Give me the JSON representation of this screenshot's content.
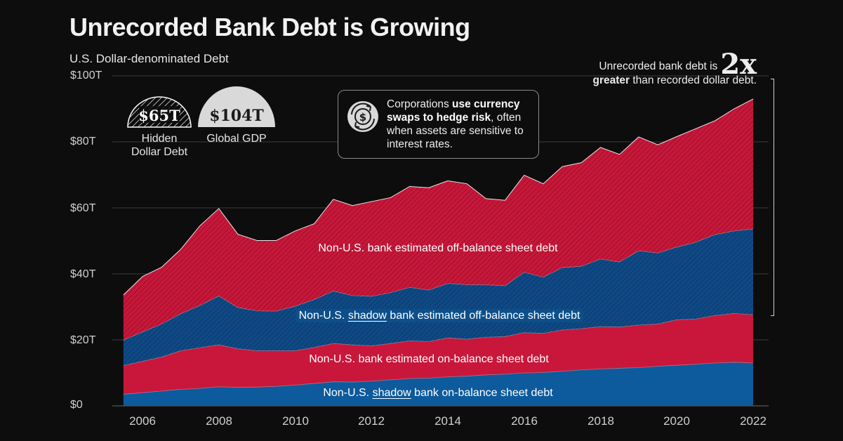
{
  "title": "Unrecorded Bank Debt is Growing",
  "subtitle": "U.S. Dollar-denominated Debt",
  "domes": [
    {
      "value": "$65T",
      "label_line1": "Hidden",
      "label_line2": "Dollar Debt"
    },
    {
      "value": "$104T",
      "label_line1": "Global GDP",
      "label_line2": ""
    }
  ],
  "callout": {
    "text_pre": "Corporations ",
    "text_bold": "use currency swaps to hedge risk",
    "text_post": ", often when assets are sensitive to interest rates."
  },
  "annotation": {
    "line1": "Unrecorded bank debt is",
    "big": "2x",
    "line2_bold": "greater",
    "line2_rest": " than recorded dollar debt."
  },
  "series_labels": {
    "s4": "Non-U.S. bank estimated off-balance sheet debt",
    "s3_pre": "Non-U.S. ",
    "s3_ul": "shadow",
    "s3_post": " bank estimated off-balance sheet debt",
    "s2": "Non-U.S. bank estimated on-balance sheet debt",
    "s1_pre": "Non-U.S. ",
    "s1_ul": "shadow",
    "s1_post": " bank on-balance sheet debt"
  },
  "colors": {
    "background": "#0d0d0d",
    "blue_dark": "#0d5a9c",
    "red_bank": "#c8173a",
    "red_off": "#c8173a",
    "blue_shadow_off": "#0f4a86"
  },
  "chart_data": {
    "type": "area",
    "stacked": true,
    "y_tick_labels": [
      "$0",
      "$20T",
      "$40T",
      "$60T",
      "$80T",
      "$100T"
    ],
    "y_ticks": [
      0,
      20,
      40,
      60,
      80,
      100
    ],
    "x_tick_labels": [
      "2006",
      "2008",
      "2010",
      "2012",
      "2014",
      "2016",
      "2018",
      "2020",
      "2022"
    ],
    "x_ticks": [
      2006,
      2008,
      2010,
      2012,
      2014,
      2016,
      2018,
      2020,
      2022
    ],
    "ylim": [
      0,
      100
    ],
    "xlim": [
      2005.3,
      2022.6
    ],
    "x": [
      2005.5,
      2006,
      2006.5,
      2007,
      2007.5,
      2008,
      2008.5,
      2009,
      2009.5,
      2010,
      2010.5,
      2011,
      2011.5,
      2012,
      2012.5,
      2013,
      2013.5,
      2014,
      2014.5,
      2015,
      2015.5,
      2016,
      2016.5,
      2017,
      2017.5,
      2018,
      2018.5,
      2019,
      2019.5,
      2020,
      2020.5,
      2021,
      2021.5,
      2022
    ],
    "series": [
      {
        "name": "Non-U.S. shadow bank on-balance sheet debt",
        "values": [
          3.5,
          4.0,
          4.5,
          5.0,
          5.3,
          5.8,
          5.6,
          5.7,
          5.9,
          6.3,
          6.8,
          7.3,
          7.2,
          7.5,
          7.9,
          8.3,
          8.4,
          8.8,
          9.0,
          9.4,
          9.6,
          10.0,
          10.1,
          10.5,
          10.9,
          11.2,
          11.4,
          11.6,
          12.0,
          12.3,
          12.6,
          13.0,
          13.2,
          13.0
        ]
      },
      {
        "name": "Non-U.S. bank estimated on-balance sheet debt",
        "values": [
          8.7,
          9.5,
          10.3,
          11.7,
          12.3,
          12.7,
          11.7,
          11.0,
          10.8,
          10.4,
          10.9,
          11.6,
          11.3,
          10.7,
          11.0,
          11.4,
          11.1,
          11.8,
          11.2,
          11.4,
          11.4,
          12.2,
          11.9,
          12.5,
          12.5,
          12.8,
          12.5,
          12.9,
          12.8,
          13.8,
          13.7,
          14.4,
          14.8,
          14.6
        ]
      },
      {
        "name": "Non-U.S. shadow bank estimated off-balance sheet debt",
        "values": [
          7.7,
          8.9,
          10.0,
          11.2,
          12.8,
          14.8,
          12.5,
          12.1,
          12.0,
          13.5,
          14.5,
          15.9,
          14.9,
          15.0,
          15.4,
          16.2,
          15.6,
          16.5,
          16.5,
          15.9,
          15.4,
          18.3,
          17.0,
          18.9,
          18.9,
          20.5,
          19.7,
          22.5,
          21.5,
          22.0,
          23.3,
          24.5,
          25.0,
          26.0
        ]
      },
      {
        "name": "Non-U.S. bank estimated off-balance sheet debt",
        "values": [
          13.7,
          16.8,
          17.2,
          19.5,
          24.1,
          26.5,
          22.2,
          21.3,
          21.4,
          22.8,
          23.0,
          27.8,
          27.3,
          28.7,
          28.8,
          30.6,
          31.0,
          31.1,
          30.6,
          26.1,
          25.9,
          29.4,
          28.3,
          30.6,
          31.4,
          33.8,
          32.6,
          34.5,
          32.8,
          33.5,
          34.4,
          34.5,
          37.0,
          39.4
        ]
      }
    ]
  }
}
